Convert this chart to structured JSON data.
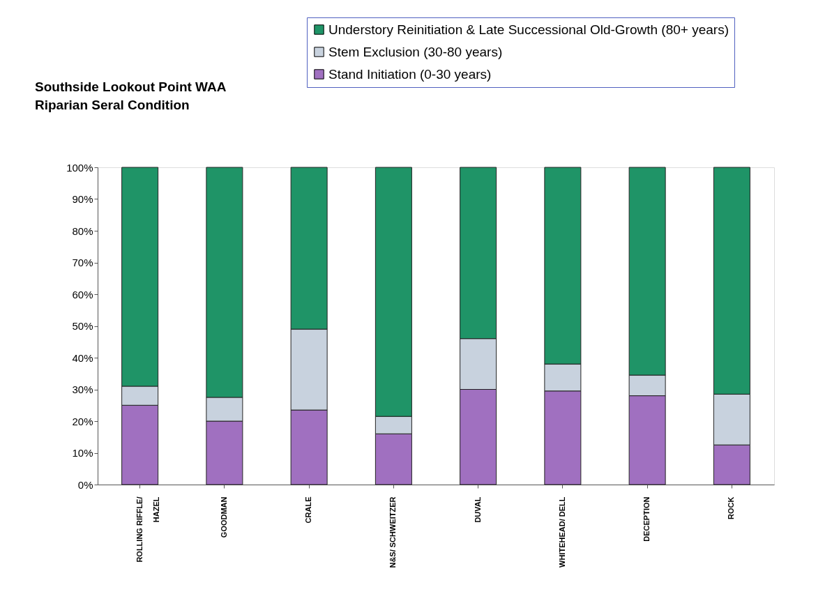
{
  "chart_data": {
    "type": "bar",
    "title": "Southside Lookout Point WAA\nRiparian Seral Condition",
    "categories": [
      "ROLLING RIFFLE/ HAZEL",
      "GOODMAN",
      "CRALE",
      "N&S/ SCHWEITZER",
      "DUVAL",
      "WHITEHEAD/ DELL",
      "DECEPTION",
      "ROCK"
    ],
    "stacked": true,
    "series": [
      {
        "name": "Stand Initiation (0-30 years)",
        "color": "#a070c0",
        "values": [
          25,
          20,
          23.5,
          16,
          30,
          29.5,
          28,
          12.5
        ]
      },
      {
        "name": "Stem Exclusion (30-80 years)",
        "color": "#c8d2de",
        "values": [
          6,
          7.5,
          25.5,
          5.5,
          16,
          8.5,
          6.5,
          16
        ]
      },
      {
        "name": "Understory Reinitiation & Late Successional Old-Growth (80+ years)",
        "color": "#1f9467",
        "values": [
          69,
          72.5,
          51,
          78.5,
          54,
          62,
          65.5,
          71.5
        ]
      }
    ],
    "ylim": [
      0,
      100
    ],
    "yticks": [
      {
        "value": 0,
        "label": "0%"
      },
      {
        "value": 10,
        "label": "10%"
      },
      {
        "value": 20,
        "label": "20%"
      },
      {
        "value": 30,
        "label": "30%"
      },
      {
        "value": 40,
        "label": "40%"
      },
      {
        "value": 50,
        "label": "50%"
      },
      {
        "value": 60,
        "label": "60%"
      },
      {
        "value": 70,
        "label": "70%"
      },
      {
        "value": 80,
        "label": "80%"
      },
      {
        "value": 90,
        "label": "90%"
      },
      {
        "value": 100,
        "label": "100%"
      }
    ],
    "grid": false,
    "legend": "top right"
  }
}
